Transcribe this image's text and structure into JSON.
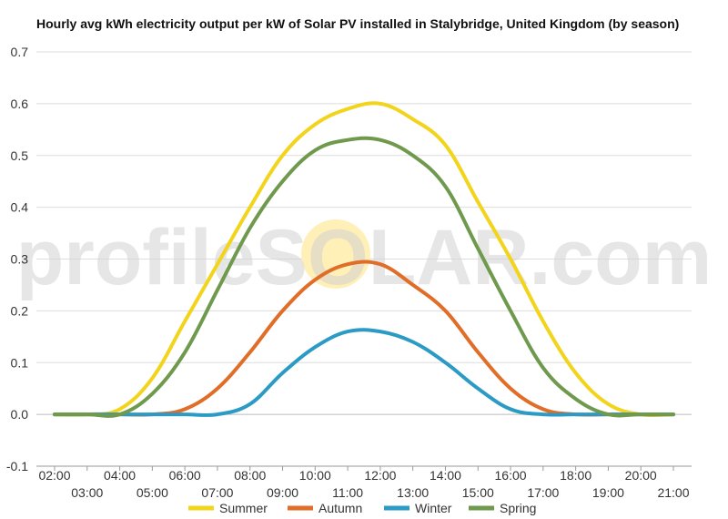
{
  "chart_data": {
    "type": "line",
    "title": "Hourly avg kWh electricity output per kW of Solar PV installed in Stalybridge, United Kingdom (by season)",
    "xlabel": "",
    "ylabel": "",
    "ylim": [
      -0.1,
      0.7
    ],
    "yticks": [
      "-0.1",
      "0.0",
      "0.1",
      "0.2",
      "0.3",
      "0.4",
      "0.5",
      "0.6",
      "0.7"
    ],
    "x": [
      "02:00",
      "03:00",
      "04:00",
      "05:00",
      "06:00",
      "07:00",
      "08:00",
      "09:00",
      "10:00",
      "11:00",
      "12:00",
      "13:00",
      "14:00",
      "15:00",
      "16:00",
      "17:00",
      "18:00",
      "19:00",
      "20:00",
      "21:00"
    ],
    "grid": true,
    "legend_position": "bottom",
    "series": [
      {
        "name": "Summer",
        "color": "#f2d41c",
        "values": [
          0,
          0,
          0.01,
          0.07,
          0.18,
          0.29,
          0.4,
          0.5,
          0.56,
          0.59,
          0.6,
          0.57,
          0.52,
          0.41,
          0.3,
          0.18,
          0.08,
          0.02,
          0,
          0
        ]
      },
      {
        "name": "Autumn",
        "color": "#e06d28",
        "values": [
          0,
          0,
          0,
          0,
          0.01,
          0.05,
          0.12,
          0.2,
          0.26,
          0.29,
          0.29,
          0.25,
          0.2,
          0.12,
          0.05,
          0.01,
          0,
          0,
          0,
          0
        ]
      },
      {
        "name": "Winter",
        "color": "#2b9ac4",
        "values": [
          0,
          0,
          0,
          0,
          0,
          0,
          0.02,
          0.08,
          0.13,
          0.16,
          0.16,
          0.14,
          0.1,
          0.05,
          0.01,
          0,
          0,
          0,
          0,
          0
        ]
      },
      {
        "name": "Spring",
        "color": "#6f9a4e",
        "values": [
          0,
          0,
          0,
          0.04,
          0.12,
          0.24,
          0.36,
          0.45,
          0.51,
          0.53,
          0.53,
          0.5,
          0.44,
          0.32,
          0.2,
          0.09,
          0.03,
          0,
          0,
          0
        ]
      }
    ]
  },
  "watermark": {
    "text": "profileSOLAR.com",
    "sun_color": "#fff0b8"
  }
}
